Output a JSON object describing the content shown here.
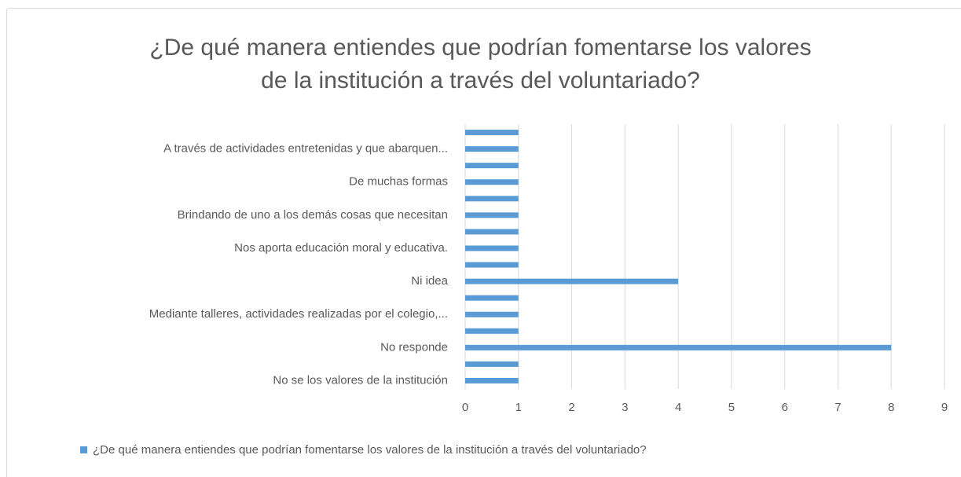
{
  "chart_data": {
    "type": "bar",
    "orientation": "horizontal",
    "title": "¿De qué manera entiendes que podrían fomentarse los valores\nde la institución a través del voluntariado?",
    "categories": [
      null,
      "A través de actividades entretenidas y que abarquen...",
      null,
      "De muchas formas",
      null,
      "Brindando de uno a los demás cosas que necesitan",
      null,
      "Nos aporta educación moral y educativa.",
      null,
      "Ni idea",
      null,
      "Mediante talleres, actividades realizadas por el colegio,...",
      null,
      "No responde",
      null,
      "No se los valores de la institución"
    ],
    "series": [
      {
        "name": "¿De qué manera entiendes que podrían fomentarse los valores de la institución a través del voluntariado?",
        "color": "#5b9bd5",
        "values": [
          1,
          1,
          1,
          1,
          1,
          1,
          1,
          1,
          1,
          4,
          1,
          1,
          1,
          8,
          1,
          1
        ]
      }
    ],
    "xlim": [
      0,
      9
    ],
    "xticks": [
      0,
      1,
      2,
      3,
      4,
      5,
      6,
      7,
      8,
      9
    ],
    "grid": true,
    "legend": "bottom"
  }
}
